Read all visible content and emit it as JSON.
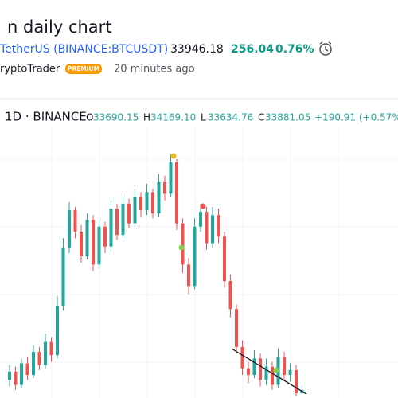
{
  "header": {
    "title": "n daily chart",
    "symbol": "TetherUS (BINANCE:BTCUSDT)",
    "price": "33946.18",
    "change": "256.04",
    "change_pct": "0.76%",
    "author": "ryptoTrader",
    "badge": "PREMIUM",
    "time": "20 minutes ago"
  },
  "chart_data": {
    "type": "candlestick",
    "interval": "1D · BINANCE",
    "legend": {
      "labels": [
        "O",
        "H",
        "L",
        "C"
      ],
      "values": [
        "33690.15",
        "34169.10",
        "33634.76",
        "33881.05"
      ],
      "change": "+190.91 (+0.57%)"
    },
    "up_color": "#26a69a",
    "down_color": "#ef5350",
    "grid": true,
    "ylim": [
      33400,
      49830
    ],
    "open": [
      34500,
      35000,
      34200,
      35500,
      34800,
      36200,
      35400,
      36800,
      36000,
      39000,
      42500,
      44800,
      43500,
      42000,
      44200,
      41500,
      43800,
      42600,
      44900,
      43300,
      45200,
      44000,
      45600,
      44800,
      45900,
      44600,
      46500,
      45800,
      47700,
      44000,
      41500,
      40200,
      43800,
      44700,
      42800,
      44500,
      43200,
      40500,
      38800,
      36500,
      35200,
      34800,
      35800,
      34500,
      35300,
      34200,
      35900,
      34800,
      35100,
      33690.15
    ],
    "high": [
      35400,
      35300,
      35800,
      35900,
      36600,
      36500,
      37300,
      37100,
      39600,
      43100,
      45300,
      45000,
      43900,
      44600,
      44500,
      44300,
      44100,
      45400,
      45200,
      45700,
      45500,
      46100,
      45900,
      46400,
      46100,
      47000,
      46900,
      48200,
      47900,
      44300,
      41900,
      44300,
      45200,
      45000,
      45000,
      44900,
      43500,
      40900,
      39100,
      36900,
      35600,
      36300,
      36100,
      35800,
      35600,
      36400,
      36200,
      35500,
      35400,
      34169.1
    ],
    "low": [
      34100,
      33900,
      34000,
      34500,
      34600,
      35100,
      35200,
      35600,
      35800,
      38700,
      42200,
      43100,
      41600,
      41800,
      41100,
      41300,
      42200,
      42300,
      43000,
      43100,
      43700,
      43800,
      44400,
      44500,
      44300,
      44400,
      45400,
      45600,
      43600,
      41000,
      39700,
      40000,
      43500,
      42400,
      42500,
      42800,
      40100,
      38300,
      36100,
      34800,
      34300,
      34600,
      34100,
      34200,
      33900,
      34000,
      34500,
      34400,
      33500,
      33634.76
    ],
    "close": [
      35000,
      34200,
      35500,
      34800,
      36200,
      35400,
      36800,
      36000,
      39000,
      42500,
      44800,
      43500,
      42000,
      44200,
      41500,
      43800,
      42600,
      44900,
      43300,
      45200,
      44000,
      45600,
      44800,
      45900,
      44600,
      46500,
      45800,
      47700,
      44000,
      41500,
      40200,
      43800,
      44700,
      42800,
      44500,
      43200,
      40500,
      38800,
      36500,
      35200,
      34800,
      35800,
      34500,
      35300,
      34200,
      35900,
      34800,
      35100,
      33690.15,
      33881.05
    ]
  }
}
